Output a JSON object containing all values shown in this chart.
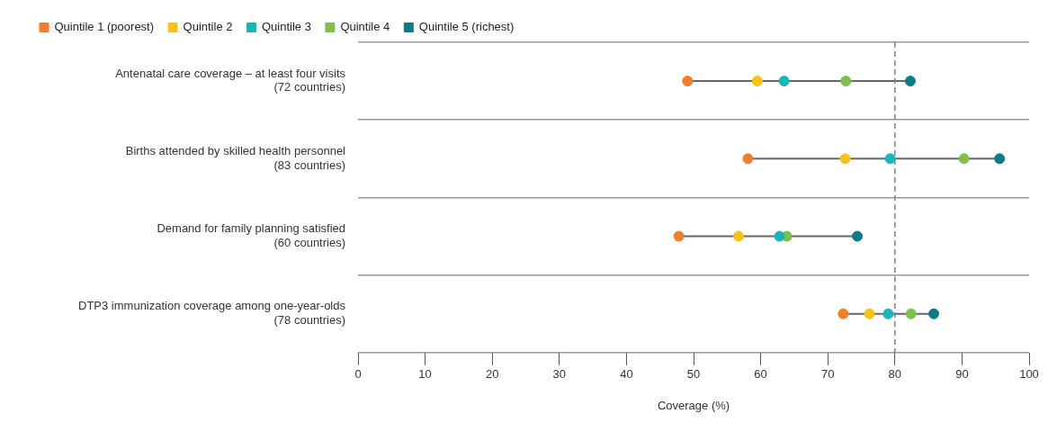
{
  "chart_data": {
    "type": "scatter",
    "orientation": "horizontal",
    "xlabel": "Coverage (%)",
    "categories": [
      "Antenatal care coverage – at least four visits\n(72 countries)",
      "Births attended by skilled health personnel\n(83 countries)",
      "Demand for family planning satisfied\n(60 countries)",
      "DTP3 immunization coverage among one-year-olds\n(78 countries)"
    ],
    "series": [
      {
        "name": "Quintile 1 (poorest)",
        "color": "#f07f2d",
        "values": [
          49.1,
          58.1,
          47.8,
          72.3
        ]
      },
      {
        "name": "Quintile 2",
        "color": "#f7c318",
        "values": [
          59.5,
          72.6,
          56.7,
          76.2
        ]
      },
      {
        "name": "Quintile 3",
        "color": "#1ab5b9",
        "values": [
          63.5,
          79.3,
          62.8,
          79.0
        ]
      },
      {
        "name": "Quintile 4",
        "color": "#7dc04a",
        "values": [
          72.7,
          90.3,
          63.9,
          82.4
        ]
      },
      {
        "name": "Quintile 5 (richest)",
        "color": "#0e7a86",
        "values": [
          82.3,
          95.6,
          74.4,
          85.8
        ]
      }
    ],
    "xlim": [
      0,
      100
    ],
    "xticks": [
      0,
      10,
      20,
      30,
      40,
      50,
      60,
      70,
      80,
      90,
      100
    ],
    "ref_lines": [
      {
        "axis": "x",
        "value": 80,
        "line_style": "dashed",
        "color": "#808080"
      }
    ],
    "grid": "y",
    "legend": "top left",
    "marker": "circle"
  }
}
